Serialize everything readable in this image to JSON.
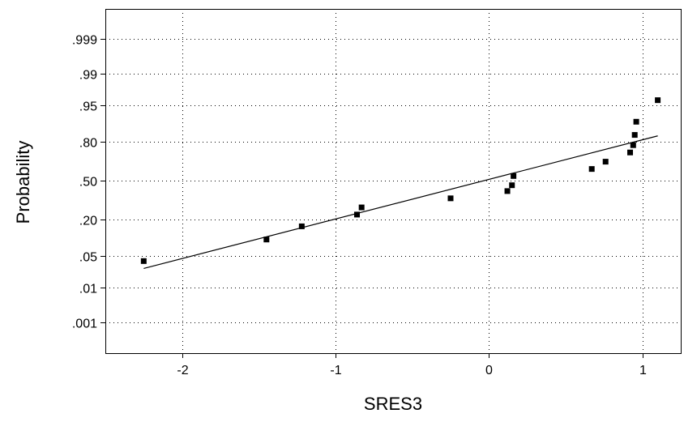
{
  "chart_data": {
    "type": "scatter",
    "title": "",
    "xlabel": "SRES3",
    "ylabel": "Probability",
    "y_scale": "normal-probability",
    "xlim": [
      -2.5,
      1.25
    ],
    "x_ticks": [
      {
        "value": -2,
        "label": "-2"
      },
      {
        "value": -1,
        "label": "-1"
      },
      {
        "value": 0,
        "label": "0"
      },
      {
        "value": 1,
        "label": "1"
      }
    ],
    "y_ticks": [
      {
        "value": 0.999,
        "label": ".999"
      },
      {
        "value": 0.99,
        "label": ".99"
      },
      {
        "value": 0.95,
        "label": ".95"
      },
      {
        "value": 0.8,
        "label": ".80"
      },
      {
        "value": 0.5,
        "label": ".50"
      },
      {
        "value": 0.2,
        "label": ".20"
      },
      {
        "value": 0.05,
        "label": ".05"
      },
      {
        "value": 0.01,
        "label": ".01"
      },
      {
        "value": 0.001,
        "label": ".001"
      }
    ],
    "grid": true,
    "points": [
      {
        "x": -2.25,
        "y": 0.04
      },
      {
        "x": -1.45,
        "y": 0.1
      },
      {
        "x": -1.22,
        "y": 0.16
      },
      {
        "x": -0.86,
        "y": 0.23
      },
      {
        "x": -0.83,
        "y": 0.28
      },
      {
        "x": -0.25,
        "y": 0.35
      },
      {
        "x": 0.12,
        "y": 0.41
      },
      {
        "x": 0.15,
        "y": 0.46
      },
      {
        "x": 0.16,
        "y": 0.54
      },
      {
        "x": 0.67,
        "y": 0.6
      },
      {
        "x": 0.76,
        "y": 0.66
      },
      {
        "x": 0.92,
        "y": 0.73
      },
      {
        "x": 0.94,
        "y": 0.78
      },
      {
        "x": 0.95,
        "y": 0.84
      },
      {
        "x": 0.96,
        "y": 0.9
      },
      {
        "x": 1.1,
        "y": 0.96
      }
    ],
    "fit_line": {
      "x": [
        -2.25,
        1.1
      ],
      "y": [
        0.028,
        0.835
      ]
    },
    "colors": {
      "points": "#000000",
      "line": "#000000",
      "grid": "#000000",
      "axes": "#000000"
    }
  }
}
